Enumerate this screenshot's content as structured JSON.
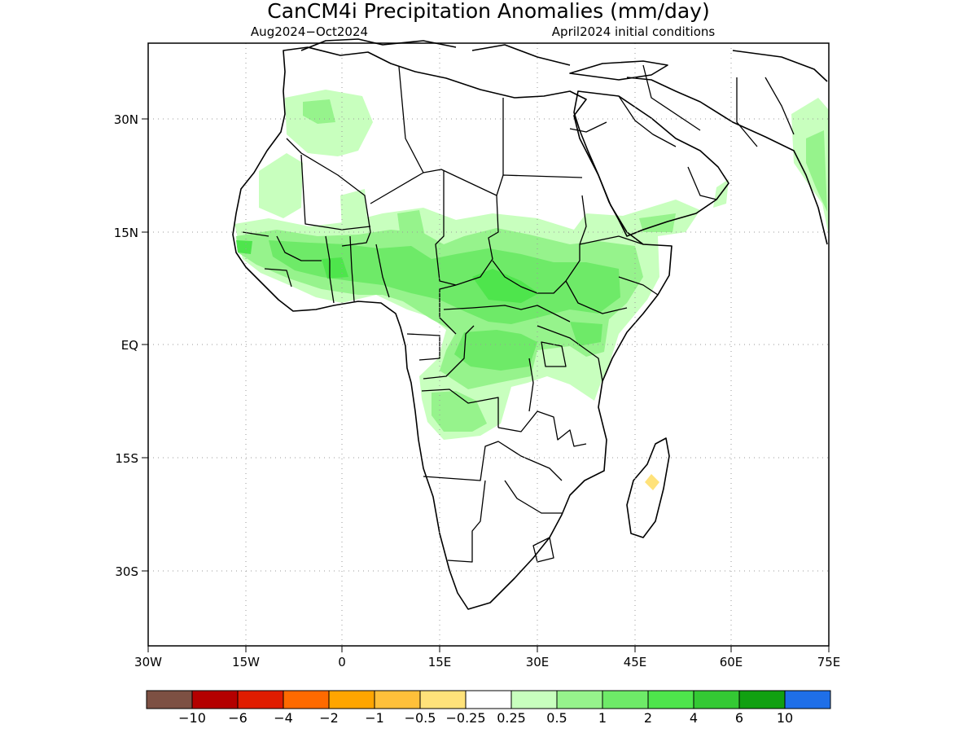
{
  "title": "CanCM4i Precipitation Anomalies (mm/day)",
  "season": "Aug2024−Oct2024",
  "init": "April2024 initial conditions",
  "lat_labels": [
    "30N",
    "15N",
    "EQ",
    "15S",
    "30S"
  ],
  "lon_labels": [
    "30W",
    "15W",
    "0",
    "15E",
    "30E",
    "45E",
    "60E",
    "75E"
  ],
  "colorbar": {
    "colors": [
      "#7d5043",
      "#b40000",
      "#e01c00",
      "#ff6a00",
      "#ffa500",
      "#ffc03a",
      "#ffe27a",
      "#ffffff",
      "#c8ffbe",
      "#96f38c",
      "#6eea68",
      "#4ee54c",
      "#34c934",
      "#11a011",
      "#1f6fe8"
    ],
    "labels": [
      "−10",
      "−6",
      "−4",
      "−2",
      "−1",
      "−0.5",
      "−0.25",
      "0.25",
      "0.5",
      "1",
      "2",
      "4",
      "6",
      "10"
    ]
  }
}
